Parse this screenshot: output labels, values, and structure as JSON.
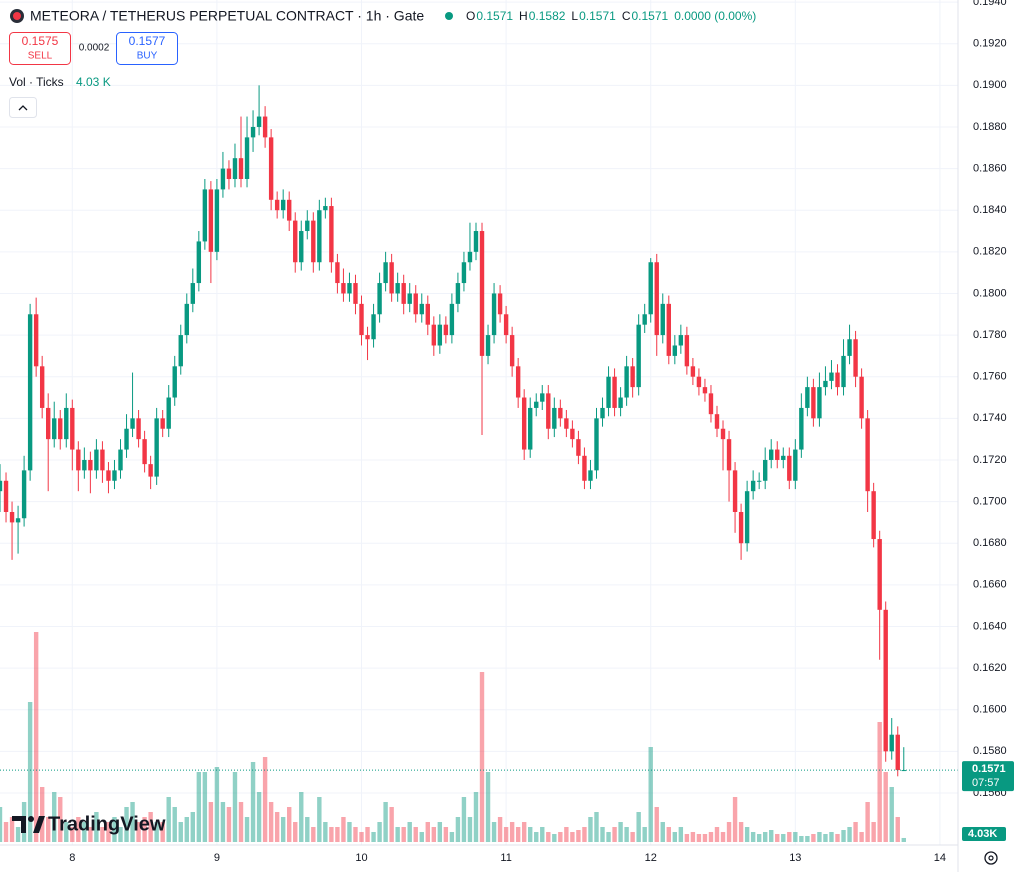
{
  "chart_data": {
    "type": "candlestick",
    "title": "METEORA / TETHERUS PERPETUAL CONTRACT · 1h · Gate",
    "ohlc_legend": [
      {
        "label": "O",
        "value": 0.1571
      },
      {
        "label": "H",
        "value": 0.1582
      },
      {
        "label": "L",
        "value": 0.1571
      },
      {
        "label": "C",
        "value": 0.1571
      }
    ],
    "change": "0.0000 (0.00%)",
    "order_panel": {
      "sell_price": 0.1575,
      "sell_label": "SELL",
      "spread": 0.0002,
      "buy_price": 0.1577,
      "buy_label": "BUY"
    },
    "volume_legend": {
      "label": "Vol · Ticks",
      "value_label": "4.03 K"
    },
    "last_price": 0.1571,
    "countdown": "07:57",
    "volume_last_label": "4.03K",
    "branding": "TradingView",
    "up_color": "#089981",
    "down_color": "#f23645",
    "grid": true,
    "xlim": [
      0,
      159
    ],
    "xticks": [
      {
        "value": 12,
        "label": "8"
      },
      {
        "value": 36,
        "label": "9"
      },
      {
        "value": 60,
        "label": "10"
      },
      {
        "value": 84,
        "label": "11"
      },
      {
        "value": 108,
        "label": "12"
      },
      {
        "value": 132,
        "label": "13"
      },
      {
        "value": 156,
        "label": "14"
      }
    ],
    "ylim": [
      0.1535,
      0.1941
    ],
    "yticks": [
      {
        "value": 0.156,
        "label": "0.1560"
      },
      {
        "value": 0.158,
        "label": "0.1580"
      },
      {
        "value": 0.16,
        "label": "0.1600"
      },
      {
        "value": 0.162,
        "label": "0.1620"
      },
      {
        "value": 0.164,
        "label": "0.1640"
      },
      {
        "value": 0.166,
        "label": "0.1660"
      },
      {
        "value": 0.168,
        "label": "0.1680"
      },
      {
        "value": 0.17,
        "label": "0.1700"
      },
      {
        "value": 0.172,
        "label": "0.1720"
      },
      {
        "value": 0.174,
        "label": "0.1740"
      },
      {
        "value": 0.176,
        "label": "0.1760"
      },
      {
        "value": 0.178,
        "label": "0.1780"
      },
      {
        "value": 0.18,
        "label": "0.1800"
      },
      {
        "value": 0.182,
        "label": "0.1820"
      },
      {
        "value": 0.184,
        "label": "0.1840"
      },
      {
        "value": 0.186,
        "label": "0.1860"
      },
      {
        "value": 0.188,
        "label": "0.1880"
      },
      {
        "value": 0.19,
        "label": "0.1900"
      },
      {
        "value": 0.192,
        "label": "0.1920"
      },
      {
        "value": 0.194,
        "label": "0.1940"
      }
    ],
    "volume_lim": [
      0,
      240000
    ],
    "ohlc": [
      [
        0.1705,
        0.1718,
        0.1695,
        0.171
      ],
      [
        0.171,
        0.1714,
        0.169,
        0.1695
      ],
      [
        0.1695,
        0.17,
        0.1672,
        0.169
      ],
      [
        0.169,
        0.1698,
        0.1675,
        0.1692
      ],
      [
        0.1692,
        0.1722,
        0.1688,
        0.1715
      ],
      [
        0.1715,
        0.1795,
        0.171,
        0.179
      ],
      [
        0.179,
        0.1798,
        0.176,
        0.1765
      ],
      [
        0.1765,
        0.177,
        0.174,
        0.1745
      ],
      [
        0.1745,
        0.1752,
        0.1705,
        0.173
      ],
      [
        0.173,
        0.1748,
        0.1726,
        0.174
      ],
      [
        0.174,
        0.1744,
        0.1725,
        0.173
      ],
      [
        0.173,
        0.1752,
        0.1726,
        0.1745
      ],
      [
        0.1745,
        0.1749,
        0.1715,
        0.1725
      ],
      [
        0.1725,
        0.1729,
        0.1705,
        0.1715
      ],
      [
        0.1715,
        0.1726,
        0.1711,
        0.172
      ],
      [
        0.172,
        0.1724,
        0.1704,
        0.1715
      ],
      [
        0.1715,
        0.173,
        0.1711,
        0.1725
      ],
      [
        0.1725,
        0.1729,
        0.1709,
        0.1715
      ],
      [
        0.1715,
        0.1719,
        0.1704,
        0.171
      ],
      [
        0.171,
        0.172,
        0.1706,
        0.1715
      ],
      [
        0.1715,
        0.173,
        0.1711,
        0.1725
      ],
      [
        0.1725,
        0.1742,
        0.1721,
        0.1735
      ],
      [
        0.1735,
        0.1762,
        0.1731,
        0.174
      ],
      [
        0.174,
        0.1744,
        0.1726,
        0.173
      ],
      [
        0.173,
        0.1734,
        0.1714,
        0.1718
      ],
      [
        0.1718,
        0.1722,
        0.1706,
        0.1712
      ],
      [
        0.1712,
        0.1745,
        0.1708,
        0.174
      ],
      [
        0.174,
        0.1744,
        0.1731,
        0.1735
      ],
      [
        0.1735,
        0.1756,
        0.1731,
        0.175
      ],
      [
        0.175,
        0.177,
        0.1746,
        0.1765
      ],
      [
        0.1765,
        0.1785,
        0.1761,
        0.178
      ],
      [
        0.178,
        0.18,
        0.1776,
        0.1795
      ],
      [
        0.1795,
        0.1812,
        0.1791,
        0.1805
      ],
      [
        0.1805,
        0.183,
        0.1801,
        0.1825
      ],
      [
        0.1825,
        0.1855,
        0.1821,
        0.185
      ],
      [
        0.185,
        0.1854,
        0.1805,
        0.182
      ],
      [
        0.182,
        0.1855,
        0.1816,
        0.185
      ],
      [
        0.185,
        0.1868,
        0.1846,
        0.186
      ],
      [
        0.186,
        0.1864,
        0.185,
        0.1855
      ],
      [
        0.1855,
        0.1872,
        0.1851,
        0.1865
      ],
      [
        0.1865,
        0.1885,
        0.1851,
        0.1855
      ],
      [
        0.1855,
        0.1885,
        0.1851,
        0.1875
      ],
      [
        0.1875,
        0.1888,
        0.1868,
        0.188
      ],
      [
        0.188,
        0.19,
        0.1876,
        0.1885
      ],
      [
        0.1885,
        0.189,
        0.187,
        0.1875
      ],
      [
        0.1875,
        0.1879,
        0.184,
        0.1845
      ],
      [
        0.1845,
        0.1849,
        0.1836,
        0.184
      ],
      [
        0.184,
        0.185,
        0.1836,
        0.1845
      ],
      [
        0.1845,
        0.1849,
        0.183,
        0.1835
      ],
      [
        0.1835,
        0.1839,
        0.181,
        0.1815
      ],
      [
        0.1815,
        0.1835,
        0.1811,
        0.183
      ],
      [
        0.183,
        0.184,
        0.1826,
        0.1835
      ],
      [
        0.1835,
        0.1839,
        0.181,
        0.1815
      ],
      [
        0.1815,
        0.1845,
        0.1811,
        0.184
      ],
      [
        0.184,
        0.1846,
        0.1836,
        0.1842
      ],
      [
        0.1842,
        0.1846,
        0.181,
        0.1815
      ],
      [
        0.1815,
        0.1819,
        0.18,
        0.1805
      ],
      [
        0.1805,
        0.1812,
        0.1796,
        0.18
      ],
      [
        0.18,
        0.181,
        0.1796,
        0.1805
      ],
      [
        0.1805,
        0.1809,
        0.179,
        0.1795
      ],
      [
        0.1795,
        0.1799,
        0.1775,
        0.178
      ],
      [
        0.178,
        0.1784,
        0.1768,
        0.1778
      ],
      [
        0.1778,
        0.1795,
        0.1774,
        0.179
      ],
      [
        0.179,
        0.181,
        0.1786,
        0.1805
      ],
      [
        0.1805,
        0.182,
        0.1801,
        0.1815
      ],
      [
        0.1815,
        0.1819,
        0.1796,
        0.18
      ],
      [
        0.18,
        0.181,
        0.1796,
        0.1805
      ],
      [
        0.1805,
        0.1809,
        0.179,
        0.1795
      ],
      [
        0.1795,
        0.1805,
        0.1791,
        0.18
      ],
      [
        0.18,
        0.1804,
        0.1786,
        0.179
      ],
      [
        0.179,
        0.18,
        0.1786,
        0.1795
      ],
      [
        0.1795,
        0.1799,
        0.178,
        0.1785
      ],
      [
        0.1785,
        0.1789,
        0.177,
        0.1775
      ],
      [
        0.1775,
        0.179,
        0.1771,
        0.1785
      ],
      [
        0.1785,
        0.1789,
        0.1776,
        0.178
      ],
      [
        0.178,
        0.18,
        0.1776,
        0.1795
      ],
      [
        0.1795,
        0.181,
        0.1791,
        0.1805
      ],
      [
        0.1805,
        0.182,
        0.1801,
        0.1815
      ],
      [
        0.1815,
        0.1834,
        0.1811,
        0.182
      ],
      [
        0.182,
        0.1834,
        0.1816,
        0.183
      ],
      [
        0.183,
        0.1834,
        0.1732,
        0.177
      ],
      [
        0.177,
        0.1785,
        0.1766,
        0.178
      ],
      [
        0.178,
        0.1805,
        0.1776,
        0.18
      ],
      [
        0.18,
        0.1804,
        0.1786,
        0.179
      ],
      [
        0.179,
        0.1794,
        0.1776,
        0.178
      ],
      [
        0.178,
        0.1784,
        0.176,
        0.1765
      ],
      [
        0.1765,
        0.1769,
        0.1745,
        0.175
      ],
      [
        0.175,
        0.1754,
        0.172,
        0.1725
      ],
      [
        0.1725,
        0.175,
        0.1721,
        0.1745
      ],
      [
        0.1745,
        0.1752,
        0.1741,
        0.1748
      ],
      [
        0.1748,
        0.1756,
        0.1744,
        0.1752
      ],
      [
        0.1752,
        0.1756,
        0.173,
        0.1735
      ],
      [
        0.1735,
        0.175,
        0.1731,
        0.1745
      ],
      [
        0.1745,
        0.1749,
        0.1736,
        0.174
      ],
      [
        0.174,
        0.1744,
        0.1731,
        0.1735
      ],
      [
        0.1735,
        0.1739,
        0.1726,
        0.173
      ],
      [
        0.173,
        0.1734,
        0.1718,
        0.1722
      ],
      [
        0.1722,
        0.1726,
        0.1706,
        0.171
      ],
      [
        0.171,
        0.172,
        0.1706,
        0.1715
      ],
      [
        0.1715,
        0.1745,
        0.1711,
        0.174
      ],
      [
        0.174,
        0.175,
        0.1736,
        0.1745
      ],
      [
        0.1745,
        0.1765,
        0.1741,
        0.176
      ],
      [
        0.176,
        0.1764,
        0.1741,
        0.1745
      ],
      [
        0.1745,
        0.1755,
        0.1741,
        0.175
      ],
      [
        0.175,
        0.177,
        0.1746,
        0.1765
      ],
      [
        0.1765,
        0.1769,
        0.175,
        0.1755
      ],
      [
        0.1755,
        0.179,
        0.1751,
        0.1785
      ],
      [
        0.1785,
        0.1795,
        0.1781,
        0.179
      ],
      [
        0.179,
        0.1817,
        0.1786,
        0.1815
      ],
      [
        0.1815,
        0.1819,
        0.177,
        0.178
      ],
      [
        0.178,
        0.18,
        0.1776,
        0.1795
      ],
      [
        0.1795,
        0.1799,
        0.1766,
        0.177
      ],
      [
        0.177,
        0.178,
        0.1766,
        0.1775
      ],
      [
        0.1775,
        0.1785,
        0.1771,
        0.178
      ],
      [
        0.178,
        0.1784,
        0.1761,
        0.1765
      ],
      [
        0.1765,
        0.1769,
        0.1756,
        0.176
      ],
      [
        0.176,
        0.1764,
        0.1751,
        0.1755
      ],
      [
        0.1755,
        0.1759,
        0.1748,
        0.1752
      ],
      [
        0.1752,
        0.1756,
        0.1738,
        0.1742
      ],
      [
        0.1742,
        0.1746,
        0.1731,
        0.1735
      ],
      [
        0.1735,
        0.1739,
        0.1715,
        0.173
      ],
      [
        0.173,
        0.1734,
        0.17,
        0.1715
      ],
      [
        0.1715,
        0.1719,
        0.1685,
        0.1695
      ],
      [
        0.1695,
        0.1699,
        0.1672,
        0.168
      ],
      [
        0.168,
        0.171,
        0.1676,
        0.1705
      ],
      [
        0.1705,
        0.1715,
        0.1701,
        0.171
      ],
      [
        0.171,
        0.1714,
        0.1706,
        0.171
      ],
      [
        0.171,
        0.1726,
        0.1706,
        0.172
      ],
      [
        0.172,
        0.173,
        0.1716,
        0.1725
      ],
      [
        0.1725,
        0.1729,
        0.1716,
        0.172
      ],
      [
        0.172,
        0.1726,
        0.1716,
        0.1722
      ],
      [
        0.1722,
        0.1726,
        0.1706,
        0.171
      ],
      [
        0.171,
        0.173,
        0.1706,
        0.1725
      ],
      [
        0.1725,
        0.1752,
        0.1721,
        0.1745
      ],
      [
        0.1745,
        0.176,
        0.1741,
        0.1755
      ],
      [
        0.1755,
        0.1759,
        0.1736,
        0.174
      ],
      [
        0.174,
        0.1762,
        0.1736,
        0.1755
      ],
      [
        0.1755,
        0.1765,
        0.1751,
        0.1758
      ],
      [
        0.1758,
        0.1768,
        0.1754,
        0.1762
      ],
      [
        0.1762,
        0.1766,
        0.1751,
        0.1755
      ],
      [
        0.1755,
        0.1778,
        0.1751,
        0.177
      ],
      [
        0.177,
        0.1785,
        0.1766,
        0.1778
      ],
      [
        0.1778,
        0.1782,
        0.1755,
        0.176
      ],
      [
        0.176,
        0.1764,
        0.1735,
        0.174
      ],
      [
        0.174,
        0.1744,
        0.1695,
        0.1705
      ],
      [
        0.1705,
        0.1709,
        0.1678,
        0.1682
      ],
      [
        0.1682,
        0.1686,
        0.1624,
        0.1648
      ],
      [
        0.1648,
        0.1652,
        0.1575,
        0.158
      ],
      [
        0.158,
        0.1596,
        0.1576,
        0.1588
      ],
      [
        0.1588,
        0.1592,
        0.1568,
        0.1571
      ],
      [
        0.1571,
        0.1582,
        0.1571,
        0.1571
      ]
    ],
    "volume": [
      35000,
      20000,
      25000,
      15000,
      40000,
      140000,
      210000,
      55000,
      25000,
      50000,
      45000,
      20000,
      15000,
      25000,
      20000,
      15000,
      30000,
      15000,
      20000,
      25000,
      15000,
      35000,
      40000,
      20000,
      25000,
      30000,
      20000,
      20000,
      45000,
      35000,
      20000,
      25000,
      30000,
      70000,
      70000,
      40000,
      75000,
      40000,
      35000,
      70000,
      40000,
      25000,
      80000,
      50000,
      85000,
      40000,
      30000,
      25000,
      35000,
      20000,
      50000,
      25000,
      15000,
      45000,
      20000,
      15000,
      15000,
      25000,
      20000,
      15000,
      10000,
      15000,
      10000,
      20000,
      40000,
      35000,
      15000,
      15000,
      20000,
      15000,
      10000,
      20000,
      15000,
      20000,
      15000,
      10000,
      25000,
      45000,
      25000,
      50000,
      170000,
      70000,
      20000,
      25000,
      15000,
      20000,
      15000,
      20000,
      15000,
      10000,
      15000,
      10000,
      8000,
      10000,
      15000,
      10000,
      12000,
      15000,
      25000,
      30000,
      15000,
      10000,
      15000,
      20000,
      15000,
      10000,
      30000,
      15000,
      95000,
      35000,
      20000,
      15000,
      10000,
      15000,
      8000,
      10000,
      8000,
      8000,
      10000,
      15000,
      10000,
      20000,
      45000,
      20000,
      15000,
      10000,
      8000,
      10000,
      12000,
      8000,
      8000,
      10000,
      10000,
      6000,
      6000,
      8000,
      10000,
      8000,
      10000,
      8000,
      12000,
      15000,
      20000,
      10000,
      40000,
      20000,
      120000,
      70000,
      55000,
      25000,
      4030
    ]
  }
}
